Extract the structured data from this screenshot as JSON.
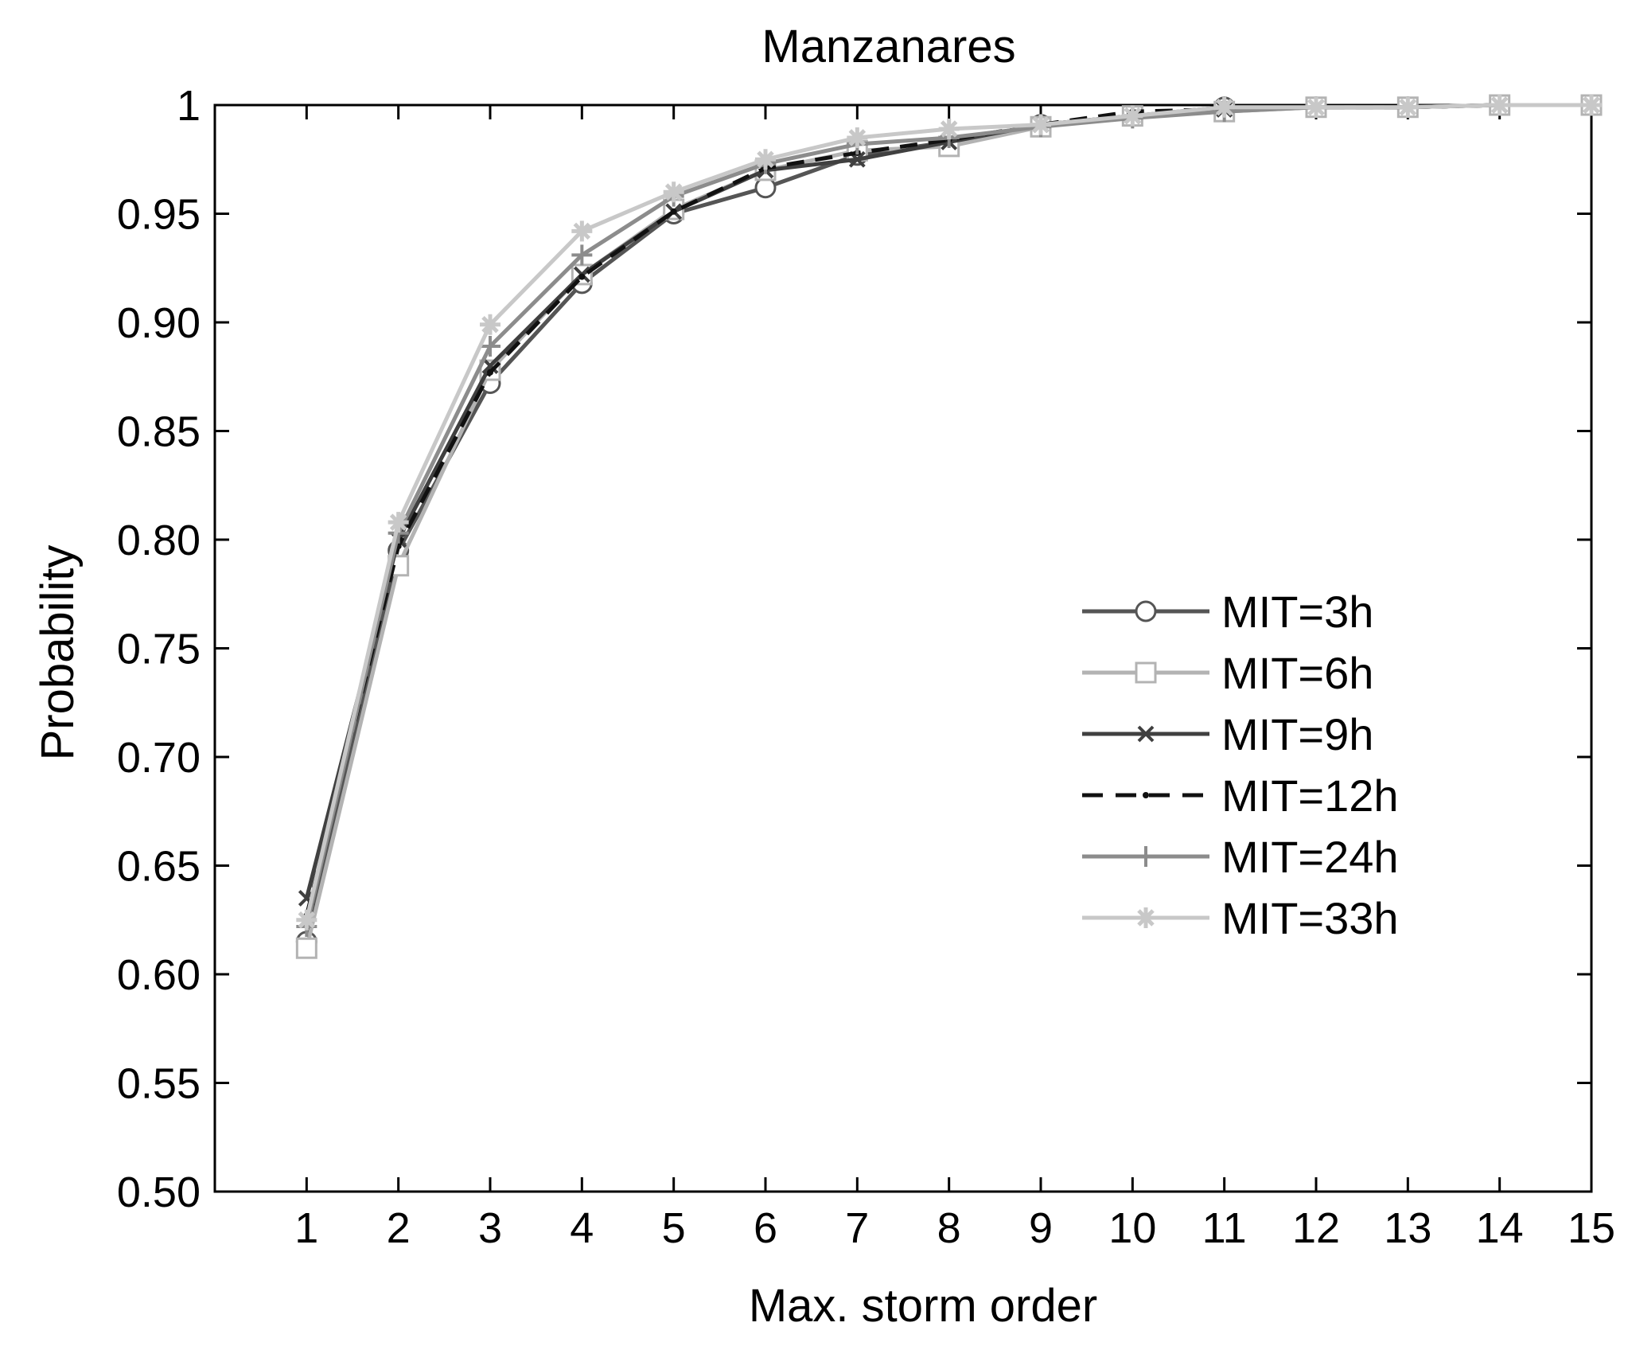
{
  "chart_data": {
    "type": "line",
    "title": "Manzanares",
    "xlabel": "Max. storm order",
    "ylabel": "Probability",
    "xlim": [
      0,
      15
    ],
    "ylim": [
      0.5,
      1.0
    ],
    "x": [
      1,
      2,
      3,
      4,
      5,
      6,
      7,
      8,
      9,
      10,
      11,
      12,
      13,
      14,
      15
    ],
    "x_ticks": [
      1,
      2,
      3,
      4,
      5,
      6,
      7,
      8,
      9,
      10,
      11,
      12,
      13,
      14,
      15
    ],
    "y_ticks": [
      0.5,
      0.55,
      0.6,
      0.65,
      0.7,
      0.75,
      0.8,
      0.85,
      0.9,
      0.95,
      1.0
    ],
    "y_tick_labels": [
      "0.50",
      "0.55",
      "0.60",
      "0.65",
      "0.70",
      "0.75",
      "0.80",
      "0.85",
      "0.90",
      "0.95",
      "1"
    ],
    "grid": false,
    "legend_position": "right",
    "series": [
      {
        "name": "MIT=3h",
        "marker": "circle",
        "color": "#555555",
        "dash": "solid",
        "values": [
          0.615,
          0.795,
          0.872,
          0.918,
          0.95,
          0.962,
          0.977,
          0.983,
          0.991,
          0.995,
          0.999,
          0.999,
          0.999,
          1.0,
          1.0
        ]
      },
      {
        "name": "MIT=6h",
        "marker": "square",
        "color": "#b3b3b3",
        "dash": "solid",
        "values": [
          0.612,
          0.788,
          0.878,
          0.922,
          0.952,
          0.97,
          0.979,
          0.981,
          0.99,
          0.995,
          0.997,
          0.999,
          0.999,
          1.0,
          1.0
        ]
      },
      {
        "name": "MIT=9h",
        "marker": "x",
        "color": "#404040",
        "dash": "solid",
        "values": [
          0.635,
          0.8,
          0.88,
          0.922,
          0.951,
          0.97,
          0.975,
          0.983,
          0.991,
          0.995,
          0.998,
          0.999,
          0.999,
          1.0,
          1.0
        ]
      },
      {
        "name": "MIT=12h",
        "marker": "dot",
        "color": "#111111",
        "dash": "dashed",
        "values": [
          0.627,
          0.797,
          0.877,
          0.921,
          0.951,
          0.971,
          0.978,
          0.984,
          0.991,
          0.997,
          0.998,
          0.999,
          0.999,
          1.0,
          1.0
        ]
      },
      {
        "name": "MIT=24h",
        "marker": "plus",
        "color": "#8c8c8c",
        "dash": "solid",
        "values": [
          0.622,
          0.803,
          0.889,
          0.931,
          0.958,
          0.973,
          0.982,
          0.985,
          0.99,
          0.994,
          0.997,
          0.999,
          0.999,
          1.0,
          1.0
        ]
      },
      {
        "name": "MIT=33h",
        "marker": "star",
        "color": "#c8c8c8",
        "dash": "solid",
        "values": [
          0.625,
          0.808,
          0.899,
          0.942,
          0.96,
          0.975,
          0.985,
          0.989,
          0.991,
          0.995,
          0.999,
          0.999,
          0.999,
          1.0,
          1.0
        ]
      }
    ]
  }
}
